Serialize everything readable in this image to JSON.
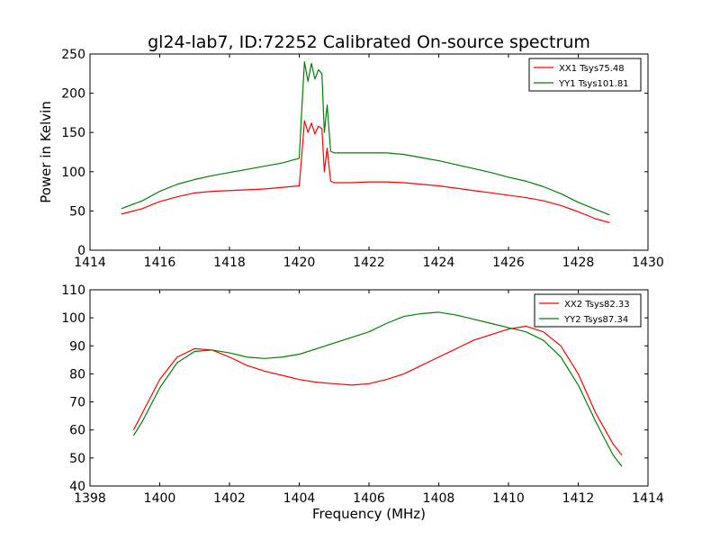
{
  "figure": {
    "title": "gl24-lab7, ID:72252 Calibrated On-source spectrum",
    "xlabel": "Frequency (MHz)",
    "ylabel": "Power in Kelvin"
  },
  "chart_data": [
    {
      "type": "line",
      "title": "gl24-lab7, ID:72252 Calibrated On-source spectrum",
      "xlabel": "",
      "ylabel": "Power in Kelvin",
      "xlim": [
        1414,
        1430
      ],
      "ylim": [
        0,
        250
      ],
      "xticks": [
        "1414",
        "1416",
        "1418",
        "1420",
        "1422",
        "1424",
        "1426",
        "1428",
        "1430"
      ],
      "yticks": [
        "0",
        "50",
        "100",
        "150",
        "200",
        "250"
      ],
      "grid": false,
      "legend": "top-right",
      "series": [
        {
          "name": "XX1 Tsys75.48",
          "color": "#ff0000",
          "points": [
            [
              1414.9,
              46
            ],
            [
              1415.5,
              53
            ],
            [
              1416,
              62
            ],
            [
              1416.5,
              68
            ],
            [
              1417,
              73
            ],
            [
              1417.5,
              75
            ],
            [
              1418,
              76
            ],
            [
              1418.5,
              77
            ],
            [
              1419,
              78
            ],
            [
              1419.5,
              80
            ],
            [
              1420,
              82
            ],
            [
              1420.08,
              125
            ],
            [
              1420.15,
              165
            ],
            [
              1420.25,
              150
            ],
            [
              1420.35,
              162
            ],
            [
              1420.45,
              148
            ],
            [
              1420.55,
              158
            ],
            [
              1420.65,
              155
            ],
            [
              1420.72,
              100
            ],
            [
              1420.8,
              130
            ],
            [
              1420.9,
              88
            ],
            [
              1421,
              86
            ],
            [
              1421.5,
              86
            ],
            [
              1422,
              87
            ],
            [
              1422.5,
              87
            ],
            [
              1423,
              86
            ],
            [
              1423.5,
              84
            ],
            [
              1424,
              82
            ],
            [
              1424.5,
              79
            ],
            [
              1425,
              76
            ],
            [
              1425.5,
              73
            ],
            [
              1426,
              70
            ],
            [
              1426.5,
              67
            ],
            [
              1427,
              63
            ],
            [
              1427.5,
              57
            ],
            [
              1428,
              49
            ],
            [
              1428.5,
              40
            ],
            [
              1428.9,
              35
            ]
          ]
        },
        {
          "name": "YY1 Tsys101.81",
          "color": "#008000",
          "points": [
            [
              1414.9,
              53
            ],
            [
              1415.5,
              63
            ],
            [
              1416,
              75
            ],
            [
              1416.5,
              84
            ],
            [
              1417,
              90
            ],
            [
              1417.5,
              95
            ],
            [
              1418,
              99
            ],
            [
              1418.5,
              103
            ],
            [
              1419,
              107
            ],
            [
              1419.5,
              111
            ],
            [
              1420,
              117
            ],
            [
              1420.08,
              185
            ],
            [
              1420.15,
              240
            ],
            [
              1420.25,
              215
            ],
            [
              1420.35,
              238
            ],
            [
              1420.45,
              218
            ],
            [
              1420.55,
              230
            ],
            [
              1420.65,
              225
            ],
            [
              1420.72,
              150
            ],
            [
              1420.8,
              185
            ],
            [
              1420.9,
              126
            ],
            [
              1421,
              124
            ],
            [
              1421.5,
              124
            ],
            [
              1422,
              124
            ],
            [
              1422.5,
              124
            ],
            [
              1423,
              122
            ],
            [
              1423.5,
              118
            ],
            [
              1424,
              114
            ],
            [
              1424.5,
              109
            ],
            [
              1425,
              104
            ],
            [
              1425.5,
              99
            ],
            [
              1426,
              93
            ],
            [
              1426.5,
              88
            ],
            [
              1427,
              81
            ],
            [
              1427.5,
              72
            ],
            [
              1428,
              61
            ],
            [
              1428.5,
              52
            ],
            [
              1428.9,
              45
            ]
          ]
        }
      ]
    },
    {
      "type": "line",
      "title": "",
      "xlabel": "Frequency (MHz)",
      "ylabel": "",
      "xlim": [
        1398,
        1414
      ],
      "ylim": [
        40,
        110
      ],
      "xticks": [
        "1398",
        "1400",
        "1402",
        "1404",
        "1406",
        "1408",
        "1410",
        "1412",
        "1414"
      ],
      "yticks": [
        "40",
        "50",
        "60",
        "70",
        "80",
        "90",
        "100",
        "110"
      ],
      "grid": false,
      "legend": "top-right",
      "series": [
        {
          "name": "XX2 Tsys82.33",
          "color": "#ff0000",
          "points": [
            [
              1399.25,
              60
            ],
            [
              1399.5,
              66
            ],
            [
              1400,
              78
            ],
            [
              1400.5,
              86
            ],
            [
              1401,
              89
            ],
            [
              1401.5,
              88.5
            ],
            [
              1402,
              86
            ],
            [
              1402.5,
              83
            ],
            [
              1403,
              81
            ],
            [
              1403.5,
              79.5
            ],
            [
              1404,
              78
            ],
            [
              1404.5,
              77
            ],
            [
              1405,
              76.5
            ],
            [
              1405.5,
              76
            ],
            [
              1406,
              76.5
            ],
            [
              1406.5,
              78
            ],
            [
              1407,
              80
            ],
            [
              1407.5,
              83
            ],
            [
              1408,
              86
            ],
            [
              1408.5,
              89
            ],
            [
              1409,
              92
            ],
            [
              1409.5,
              94
            ],
            [
              1410,
              96
            ],
            [
              1410.5,
              97
            ],
            [
              1411,
              95
            ],
            [
              1411.5,
              90
            ],
            [
              1412,
              80
            ],
            [
              1412.5,
              66
            ],
            [
              1413,
              55
            ],
            [
              1413.25,
              51
            ]
          ]
        },
        {
          "name": "YY2 Tsys87.34",
          "color": "#008000",
          "points": [
            [
              1399.25,
              58
            ],
            [
              1399.5,
              63
            ],
            [
              1400,
              75
            ],
            [
              1400.5,
              84
            ],
            [
              1401,
              88
            ],
            [
              1401.5,
              88.5
            ],
            [
              1402,
              87.5
            ],
            [
              1402.5,
              86
            ],
            [
              1403,
              85.5
            ],
            [
              1403.5,
              86
            ],
            [
              1404,
              87
            ],
            [
              1404.5,
              89
            ],
            [
              1405,
              91
            ],
            [
              1405.5,
              93
            ],
            [
              1406,
              95
            ],
            [
              1406.5,
              98
            ],
            [
              1407,
              100.5
            ],
            [
              1407.5,
              101.5
            ],
            [
              1408,
              102
            ],
            [
              1408.5,
              101
            ],
            [
              1409,
              99.5
            ],
            [
              1409.5,
              98
            ],
            [
              1410,
              96.5
            ],
            [
              1410.5,
              95
            ],
            [
              1411,
              92
            ],
            [
              1411.5,
              86
            ],
            [
              1412,
              76
            ],
            [
              1412.5,
              63
            ],
            [
              1413,
              51
            ],
            [
              1413.25,
              47
            ]
          ]
        }
      ]
    }
  ]
}
